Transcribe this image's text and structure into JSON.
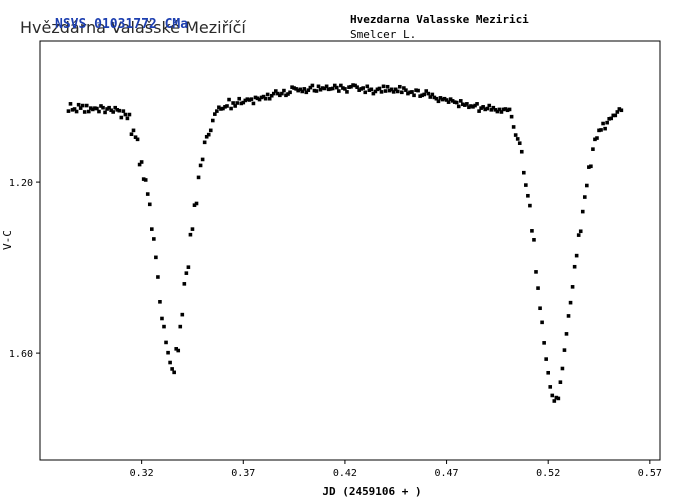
{
  "watermark": "Hvězdárna Valašské Meziříčí",
  "watermark_overlay": "NSVS 01031772 CMa",
  "header": {
    "observatory": "Hvezdarna Valasske Mezirici",
    "observer": "Smelcer L."
  },
  "chart_data": {
    "type": "scatter",
    "title": "",
    "xlabel": "JD (2459106 + )",
    "ylabel": "V-C",
    "xlim": [
      0.27,
      0.575
    ],
    "ylim": [
      1.85,
      0.87
    ],
    "y_inverted": true,
    "x_ticks": [
      0.32,
      0.37,
      0.42,
      0.47,
      0.52,
      0.57
    ],
    "x_tick_labels": [
      "0.32",
      "0.37",
      "0.42",
      "0.47",
      "0.52",
      "0.57"
    ],
    "y_ticks": [
      1.2,
      1.6
    ],
    "y_tick_labels": [
      "1.20",
      "1.60"
    ],
    "grid": false,
    "marker_color": "#000000",
    "points": [
      [
        0.284,
        1.034
      ],
      [
        0.285,
        1.017
      ],
      [
        0.286,
        1.031
      ],
      [
        0.287,
        1.029
      ],
      [
        0.288,
        1.035
      ],
      [
        0.289,
        1.019
      ],
      [
        0.29,
        1.027
      ],
      [
        0.291,
        1.021
      ],
      [
        0.292,
        1.036
      ],
      [
        0.293,
        1.021
      ],
      [
        0.294,
        1.035
      ],
      [
        0.295,
        1.027
      ],
      [
        0.296,
        1.03
      ],
      [
        0.297,
        1.027
      ],
      [
        0.298,
        1.028
      ],
      [
        0.299,
        1.035
      ],
      [
        0.3,
        1.022
      ],
      [
        0.301,
        1.026
      ],
      [
        0.302,
        1.037
      ],
      [
        0.303,
        1.029
      ],
      [
        0.304,
        1.026
      ],
      [
        0.305,
        1.032
      ],
      [
        0.306,
        1.036
      ],
      [
        0.307,
        1.026
      ],
      [
        0.308,
        1.031
      ],
      [
        0.309,
        1.033
      ],
      [
        0.31,
        1.049
      ],
      [
        0.311,
        1.034
      ],
      [
        0.312,
        1.042
      ],
      [
        0.313,
        1.051
      ],
      [
        0.314,
        1.042
      ],
      [
        0.315,
        1.088
      ],
      [
        0.316,
        1.079
      ],
      [
        0.317,
        1.095
      ],
      [
        0.318,
        1.1
      ],
      [
        0.319,
        1.159
      ],
      [
        0.32,
        1.153
      ],
      [
        0.321,
        1.193
      ],
      [
        0.322,
        1.195
      ],
      [
        0.323,
        1.228
      ],
      [
        0.324,
        1.252
      ],
      [
        0.325,
        1.31
      ],
      [
        0.326,
        1.333
      ],
      [
        0.327,
        1.376
      ],
      [
        0.328,
        1.422
      ],
      [
        0.329,
        1.48
      ],
      [
        0.33,
        1.519
      ],
      [
        0.331,
        1.538
      ],
      [
        0.332,
        1.575
      ],
      [
        0.333,
        1.599
      ],
      [
        0.334,
        1.622
      ],
      [
        0.335,
        1.637
      ],
      [
        0.336,
        1.645
      ],
      [
        0.337,
        1.59
      ],
      [
        0.338,
        1.594
      ],
      [
        0.339,
        1.538
      ],
      [
        0.34,
        1.51
      ],
      [
        0.341,
        1.438
      ],
      [
        0.342,
        1.413
      ],
      [
        0.343,
        1.399
      ],
      [
        0.344,
        1.323
      ],
      [
        0.345,
        1.31
      ],
      [
        0.346,
        1.254
      ],
      [
        0.347,
        1.25
      ],
      [
        0.348,
        1.189
      ],
      [
        0.349,
        1.161
      ],
      [
        0.35,
        1.147
      ],
      [
        0.351,
        1.107
      ],
      [
        0.352,
        1.094
      ],
      [
        0.353,
        1.089
      ],
      [
        0.354,
        1.079
      ],
      [
        0.355,
        1.056
      ],
      [
        0.356,
        1.041
      ],
      [
        0.357,
        1.034
      ],
      [
        0.358,
        1.025
      ],
      [
        0.359,
        1.029
      ],
      [
        0.36,
        1.028
      ],
      [
        0.361,
        1.024
      ],
      [
        0.362,
        1.022
      ],
      [
        0.363,
        1.007
      ],
      [
        0.364,
        1.028
      ],
      [
        0.365,
        1.015
      ],
      [
        0.366,
        1.022
      ],
      [
        0.367,
        1.015
      ],
      [
        0.368,
        1.005
      ],
      [
        0.369,
        1.016
      ],
      [
        0.37,
        1.014
      ],
      [
        0.371,
        1.009
      ],
      [
        0.372,
        1.006
      ],
      [
        0.373,
        1.008
      ],
      [
        0.374,
        1.006
      ],
      [
        0.375,
        1.016
      ],
      [
        0.376,
        1.002
      ],
      [
        0.377,
        1.004
      ],
      [
        0.378,
        1.007
      ],
      [
        0.379,
        1.002
      ],
      [
        0.38,
        1.0
      ],
      [
        0.381,
        1.005
      ],
      [
        0.382,
        0.995
      ],
      [
        0.383,
        1.005
      ],
      [
        0.384,
        0.998
      ],
      [
        0.385,
        0.993
      ],
      [
        0.386,
        0.987
      ],
      [
        0.387,
        0.993
      ],
      [
        0.388,
        0.997
      ],
      [
        0.389,
        0.993
      ],
      [
        0.39,
        0.986
      ],
      [
        0.391,
        0.997
      ],
      [
        0.392,
        0.994
      ],
      [
        0.393,
        0.99
      ],
      [
        0.394,
        0.978
      ],
      [
        0.395,
        0.98
      ],
      [
        0.396,
        0.982
      ],
      [
        0.397,
        0.986
      ],
      [
        0.398,
        0.983
      ],
      [
        0.399,
        0.988
      ],
      [
        0.4,
        0.982
      ],
      [
        0.401,
        0.99
      ],
      [
        0.402,
        0.985
      ],
      [
        0.403,
        0.979
      ],
      [
        0.404,
        0.974
      ],
      [
        0.405,
        0.986
      ],
      [
        0.406,
        0.987
      ],
      [
        0.407,
        0.976
      ],
      [
        0.408,
        0.984
      ],
      [
        0.409,
        0.98
      ],
      [
        0.41,
        0.981
      ],
      [
        0.411,
        0.976
      ],
      [
        0.412,
        0.983
      ],
      [
        0.413,
        0.982
      ],
      [
        0.414,
        0.981
      ],
      [
        0.415,
        0.974
      ],
      [
        0.416,
        0.979
      ],
      [
        0.417,
        0.987
      ],
      [
        0.418,
        0.974
      ],
      [
        0.419,
        0.98
      ],
      [
        0.42,
        0.982
      ],
      [
        0.421,
        0.989
      ],
      [
        0.422,
        0.978
      ],
      [
        0.423,
        0.977
      ],
      [
        0.424,
        0.973
      ],
      [
        0.425,
        0.974
      ],
      [
        0.426,
        0.978
      ],
      [
        0.427,
        0.985
      ],
      [
        0.428,
        0.982
      ],
      [
        0.429,
        0.98
      ],
      [
        0.43,
        0.99
      ],
      [
        0.431,
        0.976
      ],
      [
        0.432,
        0.985
      ],
      [
        0.433,
        0.983
      ],
      [
        0.434,
        0.993
      ],
      [
        0.435,
        0.988
      ],
      [
        0.436,
        0.983
      ],
      [
        0.437,
        0.981
      ],
      [
        0.438,
        0.989
      ],
      [
        0.439,
        0.976
      ],
      [
        0.44,
        0.987
      ],
      [
        0.441,
        0.977
      ],
      [
        0.442,
        0.986
      ],
      [
        0.443,
        0.983
      ],
      [
        0.444,
        0.989
      ],
      [
        0.445,
        0.983
      ],
      [
        0.446,
        0.988
      ],
      [
        0.447,
        0.977
      ],
      [
        0.448,
        0.99
      ],
      [
        0.449,
        0.98
      ],
      [
        0.45,
        0.985
      ],
      [
        0.451,
        0.993
      ],
      [
        0.452,
        0.99
      ],
      [
        0.453,
        0.989
      ],
      [
        0.454,
        0.997
      ],
      [
        0.455,
        0.985
      ],
      [
        0.456,
        0.986
      ],
      [
        0.457,
        0.999
      ],
      [
        0.458,
        0.997
      ],
      [
        0.459,
        0.995
      ],
      [
        0.46,
        0.987
      ],
      [
        0.461,
        0.993
      ],
      [
        0.462,
        1.001
      ],
      [
        0.463,
        0.995
      ],
      [
        0.464,
        1.002
      ],
      [
        0.465,
        1.005
      ],
      [
        0.466,
        1.011
      ],
      [
        0.467,
        1.003
      ],
      [
        0.468,
        1.007
      ],
      [
        0.469,
        1.005
      ],
      [
        0.47,
        1.008
      ],
      [
        0.471,
        1.013
      ],
      [
        0.472,
        1.006
      ],
      [
        0.473,
        1.01
      ],
      [
        0.474,
        1.013
      ],
      [
        0.475,
        1.014
      ],
      [
        0.476,
        1.023
      ],
      [
        0.477,
        1.01
      ],
      [
        0.478,
        1.018
      ],
      [
        0.479,
        1.02
      ],
      [
        0.48,
        1.017
      ],
      [
        0.481,
        1.025
      ],
      [
        0.482,
        1.022
      ],
      [
        0.483,
        1.024
      ],
      [
        0.484,
        1.021
      ],
      [
        0.485,
        1.017
      ],
      [
        0.486,
        1.034
      ],
      [
        0.487,
        1.027
      ],
      [
        0.488,
        1.024
      ],
      [
        0.489,
        1.03
      ],
      [
        0.49,
        1.028
      ],
      [
        0.491,
        1.021
      ],
      [
        0.492,
        1.031
      ],
      [
        0.493,
        1.026
      ],
      [
        0.494,
        1.031
      ],
      [
        0.495,
        1.035
      ],
      [
        0.496,
        1.03
      ],
      [
        0.497,
        1.036
      ],
      [
        0.498,
        1.03
      ],
      [
        0.499,
        1.029
      ],
      [
        0.5,
        1.032
      ],
      [
        0.501,
        1.03
      ],
      [
        0.502,
        1.047
      ],
      [
        0.503,
        1.071
      ],
      [
        0.504,
        1.09
      ],
      [
        0.505,
        1.099
      ],
      [
        0.506,
        1.109
      ],
      [
        0.507,
        1.129
      ],
      [
        0.508,
        1.178
      ],
      [
        0.509,
        1.207
      ],
      [
        0.51,
        1.232
      ],
      [
        0.511,
        1.255
      ],
      [
        0.512,
        1.314
      ],
      [
        0.513,
        1.335
      ],
      [
        0.514,
        1.41
      ],
      [
        0.515,
        1.448
      ],
      [
        0.516,
        1.495
      ],
      [
        0.517,
        1.528
      ],
      [
        0.518,
        1.576
      ],
      [
        0.519,
        1.614
      ],
      [
        0.52,
        1.646
      ],
      [
        0.521,
        1.679
      ],
      [
        0.522,
        1.699
      ],
      [
        0.523,
        1.712
      ],
      [
        0.524,
        1.704
      ],
      [
        0.525,
        1.706
      ],
      [
        0.526,
        1.668
      ],
      [
        0.527,
        1.636
      ],
      [
        0.528,
        1.593
      ],
      [
        0.529,
        1.555
      ],
      [
        0.53,
        1.513
      ],
      [
        0.531,
        1.482
      ],
      [
        0.532,
        1.445
      ],
      [
        0.533,
        1.398
      ],
      [
        0.534,
        1.372
      ],
      [
        0.535,
        1.324
      ],
      [
        0.536,
        1.315
      ],
      [
        0.537,
        1.269
      ],
      [
        0.538,
        1.235
      ],
      [
        0.539,
        1.208
      ],
      [
        0.54,
        1.165
      ],
      [
        0.541,
        1.163
      ],
      [
        0.542,
        1.123
      ],
      [
        0.543,
        1.1
      ],
      [
        0.544,
        1.097
      ],
      [
        0.545,
        1.079
      ],
      [
        0.546,
        1.078
      ],
      [
        0.547,
        1.063
      ],
      [
        0.548,
        1.075
      ],
      [
        0.549,
        1.061
      ],
      [
        0.55,
        1.052
      ],
      [
        0.551,
        1.051
      ],
      [
        0.552,
        1.044
      ],
      [
        0.553,
        1.044
      ],
      [
        0.554,
        1.036
      ],
      [
        0.555,
        1.029
      ],
      [
        0.556,
        1.032
      ]
    ]
  }
}
